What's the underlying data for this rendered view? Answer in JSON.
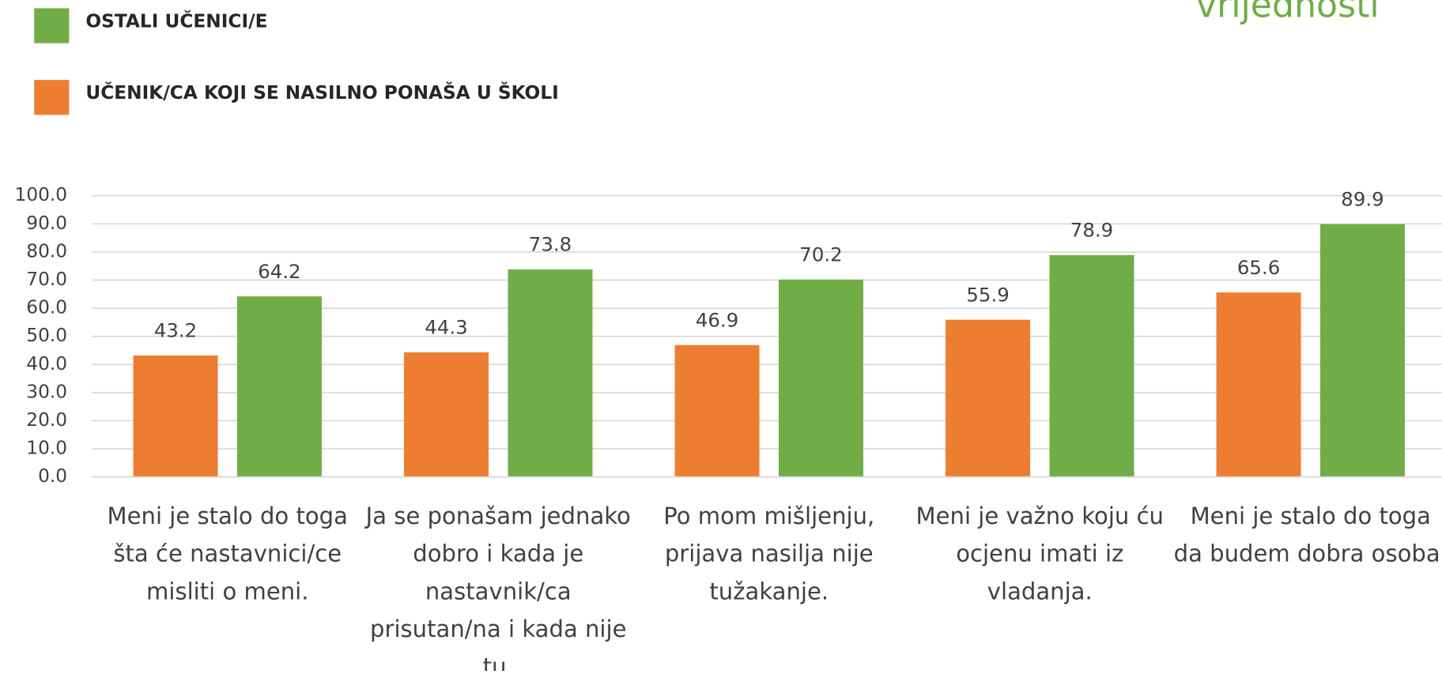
{
  "chart_data": {
    "type": "bar",
    "title": "vrijednosti",
    "categories": [
      "Meni je stalo do toga šta će nastavnici/ce misliti o meni.",
      "Ja se ponašam jednako dobro i kada je nastavnik/ca prisutan/na i kada nije tu.",
      "Po mom mišljenju, prijava nasilja nije tužakanje.",
      "Meni je važno koju ću ocjenu imati iz vladanja.",
      "Meni je stalo do toga da budem dobra osoba."
    ],
    "series": [
      {
        "name": "UČENIK/CA KOJI SE NASILNO PONAŠA U ŠKOLI",
        "color": "#ed7d31",
        "values": [
          43.2,
          44.3,
          46.9,
          55.9,
          65.6
        ]
      },
      {
        "name": "OSTALI UČENICI/E",
        "color": "#70ad47",
        "values": [
          64.2,
          73.8,
          70.2,
          78.9,
          89.9
        ]
      }
    ],
    "ylim": [
      0,
      100
    ],
    "yticks": [
      {
        "value": 0,
        "label": "0.0"
      },
      {
        "value": 10,
        "label": "10.0"
      },
      {
        "value": 20,
        "label": "20.0"
      },
      {
        "value": 30,
        "label": "30.0"
      },
      {
        "value": 40,
        "label": "40.0"
      },
      {
        "value": 50,
        "label": "50.0"
      },
      {
        "value": 60,
        "label": "60.0"
      },
      {
        "value": 70,
        "label": "70.0"
      },
      {
        "value": 80,
        "label": "80.0"
      },
      {
        "value": 90,
        "label": "90.0"
      },
      {
        "value": 100,
        "label": "100.0"
      }
    ],
    "grid": true
  }
}
